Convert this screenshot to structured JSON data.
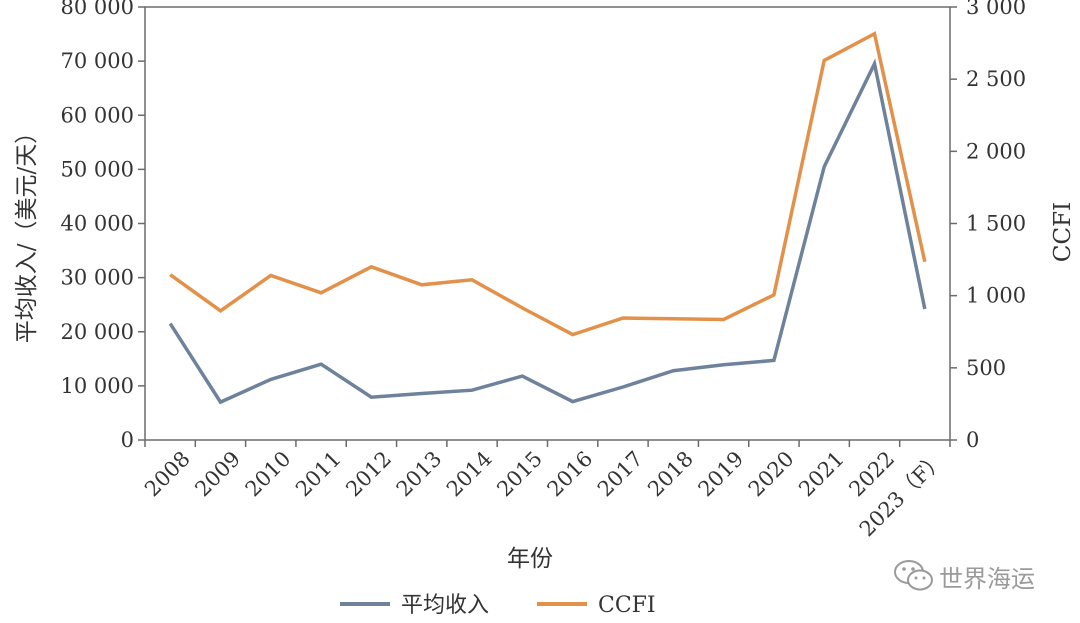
{
  "chart_data": {
    "type": "line",
    "categories": [
      "2008",
      "2009",
      "2010",
      "2011",
      "2012",
      "2013",
      "2014",
      "2015",
      "2016",
      "2017",
      "2018",
      "2019",
      "2020",
      "2021",
      "2022",
      "2023（F）"
    ],
    "xlabel": "年份",
    "ylabel_left": "平均收入/（美元/天）",
    "ylabel_right": "CCFI",
    "ylim_left": [
      0,
      80000
    ],
    "ylim_right": [
      0,
      3000
    ],
    "yticks_left": [
      0,
      10000,
      20000,
      30000,
      40000,
      50000,
      60000,
      70000,
      80000
    ],
    "ytick_labels_left": [
      "0",
      "10 000",
      "20 000",
      "30 000",
      "40 000",
      "50 000",
      "60 000",
      "70 000",
      "80 000"
    ],
    "yticks_right": [
      0,
      500,
      1000,
      1500,
      2000,
      2500,
      3000
    ],
    "ytick_labels_right": [
      "0",
      "500",
      "1 000",
      "1 500",
      "2 000",
      "2 500",
      "3 000"
    ],
    "grid": false,
    "legend_position": "bottom-center",
    "series": [
      {
        "name": "平均收入",
        "axis": "left",
        "color": "#6e829c",
        "values": [
          21500,
          7000,
          11200,
          14000,
          7900,
          8600,
          9200,
          11800,
          7100,
          9800,
          12800,
          13900,
          14700,
          50500,
          69500,
          24200
        ]
      },
      {
        "name": "CCFI",
        "axis": "right",
        "color": "#e3914a",
        "values": [
          1145,
          895,
          1140,
          1020,
          1200,
          1075,
          1110,
          915,
          730,
          845,
          840,
          835,
          1005,
          2630,
          2815,
          1235
        ]
      }
    ]
  },
  "watermark": {
    "text": "世界海运",
    "icon": "wechat-icon"
  }
}
